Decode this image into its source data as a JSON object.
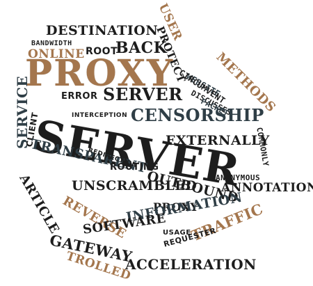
{
  "palette": {
    "dark": "#1d1d1d",
    "brown": "#a4764d",
    "slate": "#2f3e46"
  },
  "words": [
    {
      "key": "destination",
      "text": "DESTINATION"
    },
    {
      "key": "bandwidth",
      "text": "BANDWIDTH"
    },
    {
      "key": "online",
      "text": "ONLINE"
    },
    {
      "key": "root",
      "text": "ROOT"
    },
    {
      "key": "back",
      "text": "BACK"
    },
    {
      "key": "user",
      "text": "USER"
    },
    {
      "key": "protect",
      "text": "PROTECT"
    },
    {
      "key": "method",
      "text": "METHODS"
    },
    {
      "key": "proxy_big",
      "text": "PROXY"
    },
    {
      "key": "error",
      "text": "ERROR"
    },
    {
      "key": "server_mid",
      "text": "SERVER"
    },
    {
      "key": "website",
      "text": "WEBSITE"
    },
    {
      "key": "circumvent",
      "text": "CIRCUMVENT"
    },
    {
      "key": "discusses",
      "text": "DISCUSSES"
    },
    {
      "key": "packet",
      "text": "PACKET"
    },
    {
      "key": "censorship",
      "text": "CENSORSHIP"
    },
    {
      "key": "interception",
      "text": "INTERCEPTION"
    },
    {
      "key": "service",
      "text": "SERVICE"
    },
    {
      "key": "client",
      "text": "CLIENT"
    },
    {
      "key": "server_big",
      "text": "SERVER"
    },
    {
      "key": "externally",
      "text": "EXTERNALLY"
    },
    {
      "key": "transparent",
      "text": "TRANSPARENT"
    },
    {
      "key": "commonly",
      "text": "COMMONLY"
    },
    {
      "key": "routing",
      "text": "ROUTING"
    },
    {
      "key": "redirection",
      "text": "REDIRECTION"
    },
    {
      "key": "outbound",
      "text": "OUTBOUND"
    },
    {
      "key": "anonymous",
      "text": "ANONYMOUS"
    },
    {
      "key": "annotation",
      "text": "ANNOTATION"
    },
    {
      "key": "unscrambled",
      "text": "UNSCRAMBLED"
    },
    {
      "key": "article",
      "text": "ARTICLE"
    },
    {
      "key": "reverse",
      "text": "REVERSE"
    },
    {
      "key": "proxy_small",
      "text": "PROXY"
    },
    {
      "key": "information",
      "text": "INFORMATION"
    },
    {
      "key": "usage",
      "text": "USAGE"
    },
    {
      "key": "traffic",
      "text": "TRAFFIC"
    },
    {
      "key": "software",
      "text": "SOFTWARE"
    },
    {
      "key": "requester",
      "text": "REQUESTER"
    },
    {
      "key": "gateway",
      "text": "GATEWAY"
    },
    {
      "key": "trolled",
      "text": "TROLLED"
    },
    {
      "key": "acceleration",
      "text": "ACCELERATION"
    }
  ]
}
